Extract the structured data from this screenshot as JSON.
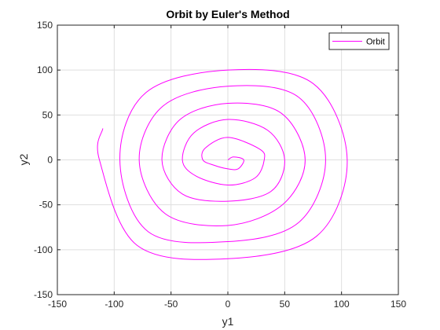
{
  "chart_data": {
    "type": "line",
    "title": "Orbit by Euler's Method",
    "xlabel": "y1",
    "ylabel": "y2",
    "xlim": [
      -150,
      150
    ],
    "ylim": [
      -150,
      150
    ],
    "xticks": [
      -150,
      -100,
      -50,
      0,
      50,
      100,
      150
    ],
    "yticks": [
      -150,
      -100,
      -50,
      0,
      50,
      100,
      150
    ],
    "grid": true,
    "legend_location": "top-right",
    "series": [
      {
        "name": "Orbit",
        "color": "#ff00ff",
        "curve": "spiral",
        "start": [
          0,
          0
        ],
        "end": [
          -110,
          35
        ],
        "points": [
          [
            0.0,
            0.0
          ],
          [
            5.0,
            3.3
          ],
          [
            14.0,
            0.0
          ],
          [
            9.0,
            -10.0
          ],
          [
            0.0,
            -10.0
          ],
          [
            -12.0,
            -6.0
          ],
          [
            -22.0,
            0.0
          ],
          [
            -20.0,
            13.0
          ],
          [
            0.0,
            25.0
          ],
          [
            28.0,
            12.0
          ],
          [
            32.0,
            0.0
          ],
          [
            24.0,
            -20.0
          ],
          [
            0.0,
            -28.0
          ],
          [
            -28.0,
            -18.0
          ],
          [
            -40.0,
            0.0
          ],
          [
            -30.0,
            30.0
          ],
          [
            0.0,
            45.0
          ],
          [
            35.0,
            33.0
          ],
          [
            50.0,
            0.0
          ],
          [
            38.0,
            -35.0
          ],
          [
            0.0,
            -46.0
          ],
          [
            -40.0,
            -38.0
          ],
          [
            -58.0,
            0.0
          ],
          [
            -42.0,
            45.0
          ],
          [
            0.0,
            63.0
          ],
          [
            47.0,
            52.0
          ],
          [
            68.0,
            0.0
          ],
          [
            48.0,
            -50.0
          ],
          [
            0.0,
            -73.0
          ],
          [
            -55.0,
            -60.0
          ],
          [
            -78.0,
            0.0
          ],
          [
            -57.0,
            60.0
          ],
          [
            0.0,
            82.0
          ],
          [
            62.0,
            70.0
          ],
          [
            86.0,
            0.0
          ],
          [
            62.0,
            -70.0
          ],
          [
            0.0,
            -91.0
          ],
          [
            -70.0,
            -80.0
          ],
          [
            -95.0,
            0.0
          ],
          [
            -72.0,
            75.0
          ],
          [
            0.0,
            100.0
          ],
          [
            75.0,
            85.0
          ],
          [
            105.0,
            0.0
          ],
          [
            78.0,
            -85.0
          ],
          [
            0.0,
            -110.0
          ],
          [
            -80.0,
            -95.0
          ],
          [
            -113.0,
            0.0
          ],
          [
            -110.0,
            35.0
          ]
        ]
      }
    ]
  }
}
